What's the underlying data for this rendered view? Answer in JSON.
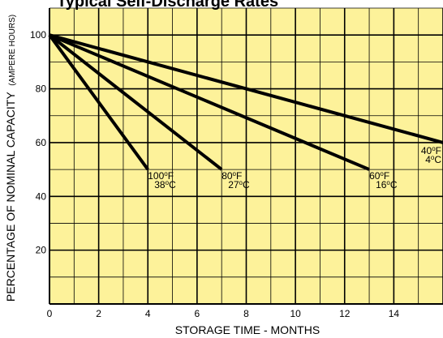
{
  "chart_data": {
    "type": "line",
    "title": "Typical Self-Discharge Rates",
    "xlabel": "STORAGE TIME - MONTHS",
    "ylabel": "PERCENTAGE OF NOMINAL CAPACITY",
    "ylabel_suffix": "(AMPERE HOURS)",
    "xlim": [
      0,
      16
    ],
    "ylim": [
      0,
      110
    ],
    "x_ticks": [
      "0",
      "2",
      "4",
      "6",
      "8",
      "10",
      "12",
      "14"
    ],
    "y_ticks": [
      "20",
      "40",
      "60",
      "80",
      "100"
    ],
    "grid": true,
    "series": [
      {
        "name_f": "100",
        "name_c": "38",
        "x": [
          0,
          4
        ],
        "y": [
          100,
          50
        ]
      },
      {
        "name_f": "80",
        "name_c": "27",
        "x": [
          0,
          7
        ],
        "y": [
          100,
          50
        ]
      },
      {
        "name_f": "60",
        "name_c": "16",
        "x": [
          0,
          13
        ],
        "y": [
          100,
          50
        ]
      },
      {
        "name_f": "40",
        "name_c": "4",
        "x": [
          0,
          16
        ],
        "y": [
          100,
          60
        ]
      }
    ]
  },
  "colors": {
    "background": "#fdf29a",
    "grid": "#000000",
    "line": "#000000"
  }
}
